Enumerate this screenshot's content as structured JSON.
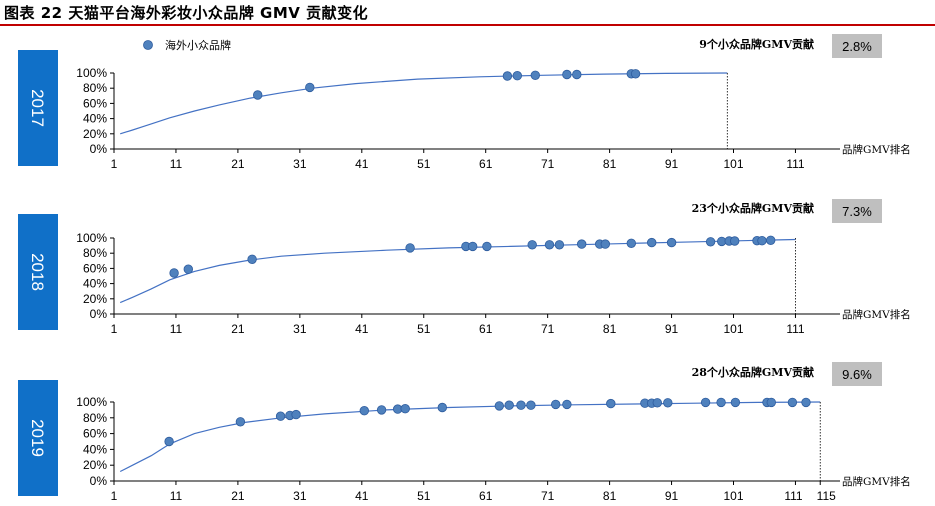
{
  "title": "图表 22 天猫平台海外彩妆小众品牌 GMV 贡献变化",
  "legend": {
    "label": "海外小众品牌",
    "color": "#4f81bd"
  },
  "colors": {
    "curve": "#4472c4",
    "point": "#4f81bd",
    "point_stroke": "#2e5c9e",
    "year_box": "#1070c8",
    "pct_box": "#bfbfbf"
  },
  "chart_data": [
    {
      "type": "scatter",
      "year": "2017",
      "annotation": "9个小众品牌GMV贡献",
      "share": "2.8%",
      "xlabel": "品牌GMV排名",
      "x_ticks": [
        "1",
        "11",
        "21",
        "31",
        "41",
        "51",
        "61",
        "71",
        "81",
        "91",
        "101",
        "111"
      ],
      "y_ticks": [
        "0%",
        "20%",
        "40%",
        "60%",
        "80%",
        "100%"
      ],
      "xlim": [
        1,
        120
      ],
      "ylim": [
        0,
        1
      ],
      "cutoff_rank": 100,
      "curve": {
        "x": [
          2,
          4,
          7,
          10,
          14,
          18,
          23,
          28,
          33,
          40,
          50,
          60,
          70,
          80,
          90,
          100
        ],
        "y": [
          0.2,
          0.25,
          0.33,
          0.41,
          0.5,
          0.58,
          0.67,
          0.74,
          0.8,
          0.86,
          0.92,
          0.95,
          0.97,
          0.985,
          0.995,
          1.0
        ]
      },
      "points": {
        "x": [
          24.2,
          32.6,
          64.5,
          66.1,
          69.0,
          74.1,
          75.7,
          84.5,
          85.2
        ],
        "y": [
          0.71,
          0.81,
          0.96,
          0.965,
          0.97,
          0.98,
          0.98,
          0.99,
          0.99
        ]
      }
    },
    {
      "type": "scatter",
      "year": "2018",
      "annotation": "23个小众品牌GMV贡献",
      "share": "7.3%",
      "xlabel": "品牌GMV排名",
      "x_ticks": [
        "1",
        "11",
        "21",
        "31",
        "41",
        "51",
        "61",
        "71",
        "81",
        "91",
        "101",
        "111"
      ],
      "y_ticks": [
        "0%",
        "20%",
        "40%",
        "60%",
        "80%",
        "100%"
      ],
      "xlim": [
        1,
        120
      ],
      "ylim": [
        0,
        1
      ],
      "cutoff_rank": 111,
      "curve": {
        "x": [
          2,
          4,
          7,
          10,
          14,
          18,
          23,
          28,
          35,
          45,
          55,
          65,
          75,
          85,
          95,
          105,
          111
        ],
        "y": [
          0.15,
          0.22,
          0.33,
          0.45,
          0.56,
          0.64,
          0.71,
          0.76,
          0.8,
          0.84,
          0.87,
          0.89,
          0.91,
          0.93,
          0.95,
          0.97,
          0.98
        ]
      },
      "points": {
        "x": [
          10.7,
          13.0,
          23.3,
          48.8,
          57.8,
          58.9,
          61.2,
          68.5,
          71.3,
          72.9,
          76.5,
          79.4,
          80.3,
          84.5,
          87.8,
          91.0,
          97.3,
          99.1,
          100.3,
          101.2,
          104.8,
          105.6,
          107.0
        ],
        "y": [
          0.54,
          0.59,
          0.72,
          0.87,
          0.89,
          0.89,
          0.89,
          0.91,
          0.91,
          0.91,
          0.92,
          0.92,
          0.92,
          0.93,
          0.94,
          0.94,
          0.95,
          0.955,
          0.96,
          0.96,
          0.965,
          0.965,
          0.97
        ]
      }
    },
    {
      "type": "scatter",
      "year": "2019",
      "annotation": "28个小众品牌GMV贡献",
      "share": "9.6%",
      "xlabel": "品牌GMV排名",
      "x_ticks": [
        "1",
        "11",
        "21",
        "31",
        "41",
        "51",
        "61",
        "71",
        "81",
        "91",
        "101",
        "111",
        "115"
      ],
      "y_ticks": [
        "0%",
        "20%",
        "40%",
        "60%",
        "80%",
        "100%"
      ],
      "xlim": [
        1,
        120
      ],
      "ylim": [
        0,
        1
      ],
      "cutoff_rank": 115,
      "curve": {
        "x": [
          2,
          4,
          7,
          10,
          14,
          18,
          22,
          28,
          35,
          45,
          55,
          65,
          75,
          85,
          95,
          105,
          115
        ],
        "y": [
          0.12,
          0.2,
          0.32,
          0.47,
          0.6,
          0.68,
          0.74,
          0.8,
          0.85,
          0.9,
          0.93,
          0.95,
          0.965,
          0.975,
          0.985,
          0.995,
          1.0
        ]
      },
      "points": {
        "x": [
          9.9,
          21.4,
          27.9,
          29.4,
          30.4,
          41.4,
          44.2,
          46.8,
          48.0,
          54.0,
          63.2,
          64.8,
          66.7,
          68.3,
          72.3,
          74.1,
          81.2,
          86.7,
          87.8,
          88.7,
          90.4,
          96.5,
          99.0,
          101.3,
          106.4,
          107.1,
          110.5,
          112.7
        ],
        "y": [
          0.5,
          0.75,
          0.82,
          0.83,
          0.84,
          0.89,
          0.9,
          0.91,
          0.915,
          0.93,
          0.95,
          0.96,
          0.96,
          0.96,
          0.97,
          0.97,
          0.98,
          0.985,
          0.985,
          0.99,
          0.99,
          0.995,
          0.995,
          0.995,
          0.995,
          0.995,
          0.995,
          0.995
        ]
      }
    }
  ]
}
